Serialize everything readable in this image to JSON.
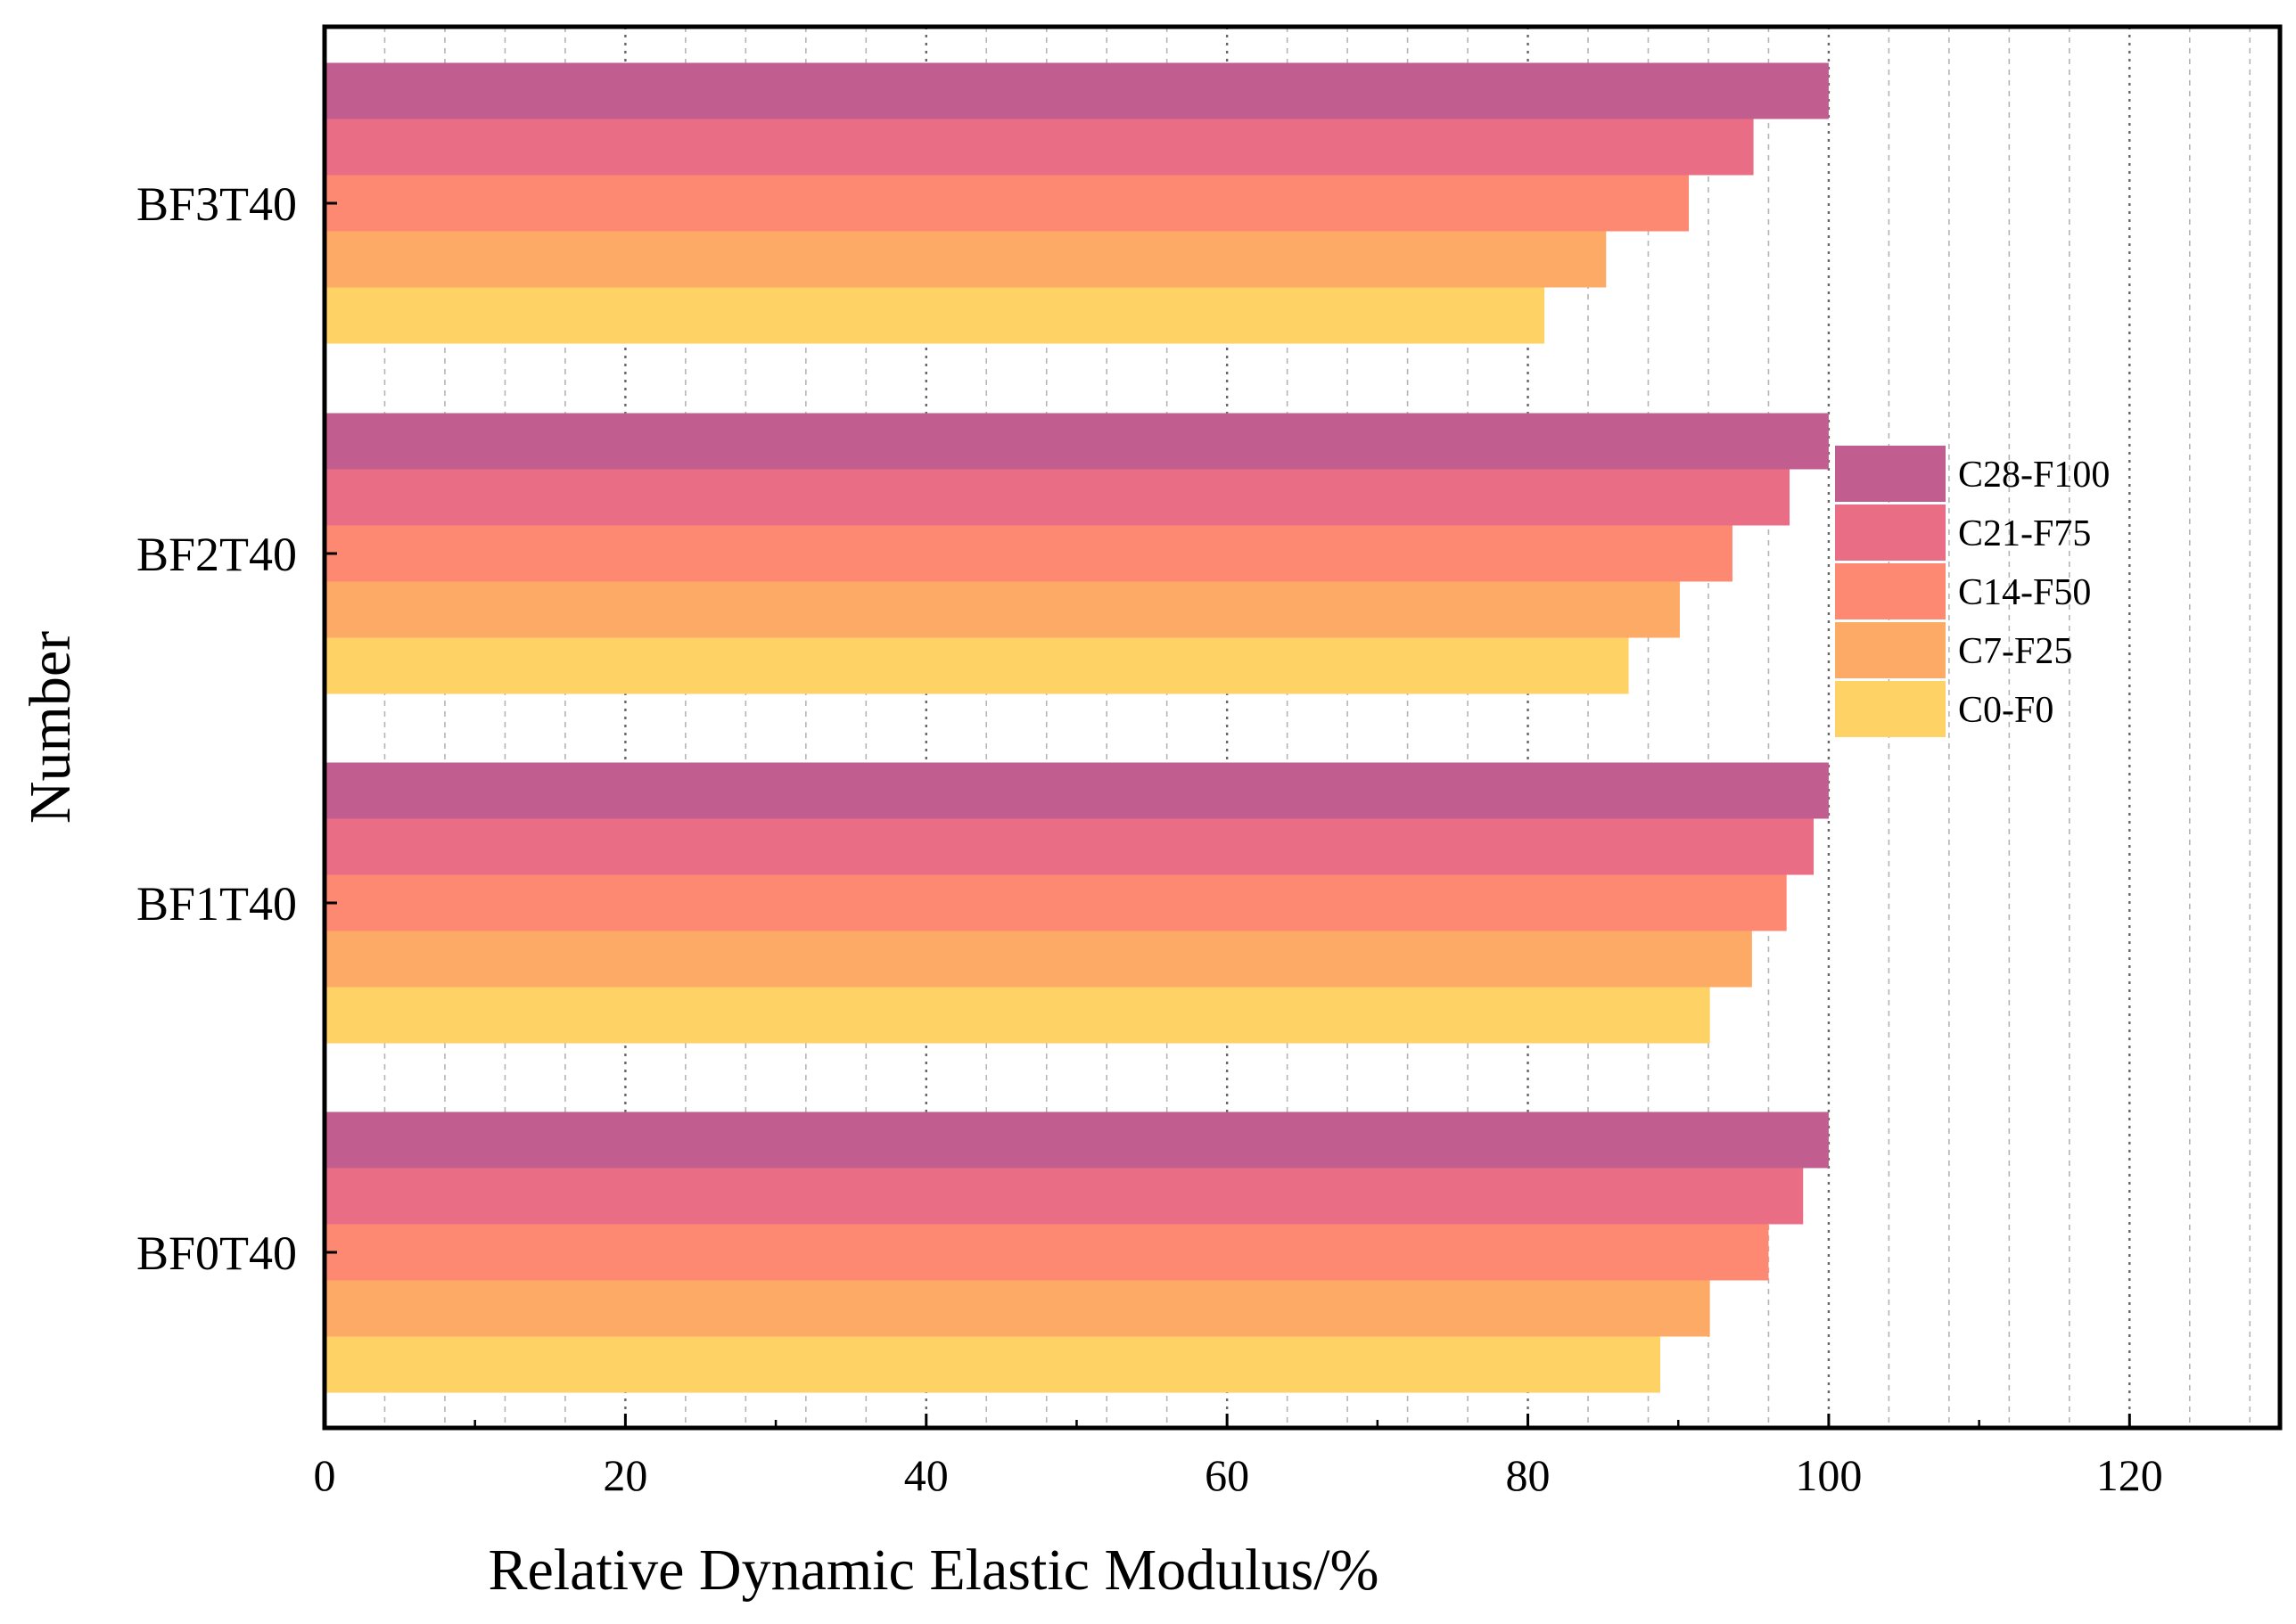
{
  "chart_data": {
    "type": "bar",
    "orientation": "horizontal",
    "title": "",
    "xlabel": "Relative Dynamic Elastic Modulus/%",
    "ylabel": "Number",
    "xlim": [
      0,
      130
    ],
    "xticks": [
      0,
      20,
      40,
      60,
      80,
      100,
      120
    ],
    "xtick_labels": [
      "0",
      "20",
      "40",
      "60",
      "80",
      "100",
      "120"
    ],
    "minor_grid_step": 4,
    "grid": "vertical dotted",
    "legend_position": "right",
    "categories": [
      "BF3T40",
      "BF2T40",
      "BF1T40",
      "BF0T40"
    ],
    "series": [
      {
        "name": "C28-F100",
        "color": "#C25E8F",
        "values": [
          100,
          100,
          100,
          100
        ]
      },
      {
        "name": "C21-F75",
        "color": "#E96D85",
        "values": [
          95.0,
          97.4,
          99.0,
          98.3
        ]
      },
      {
        "name": "C14-F50",
        "color": "#FE8973",
        "values": [
          90.7,
          93.6,
          97.2,
          96.0
        ]
      },
      {
        "name": "C7-F25",
        "color": "#FEAA67",
        "values": [
          85.2,
          90.1,
          94.9,
          92.1
        ]
      },
      {
        "name": "C0-F0",
        "color": "#FED265",
        "values": [
          81.1,
          86.7,
          92.1,
          88.8
        ]
      }
    ]
  }
}
